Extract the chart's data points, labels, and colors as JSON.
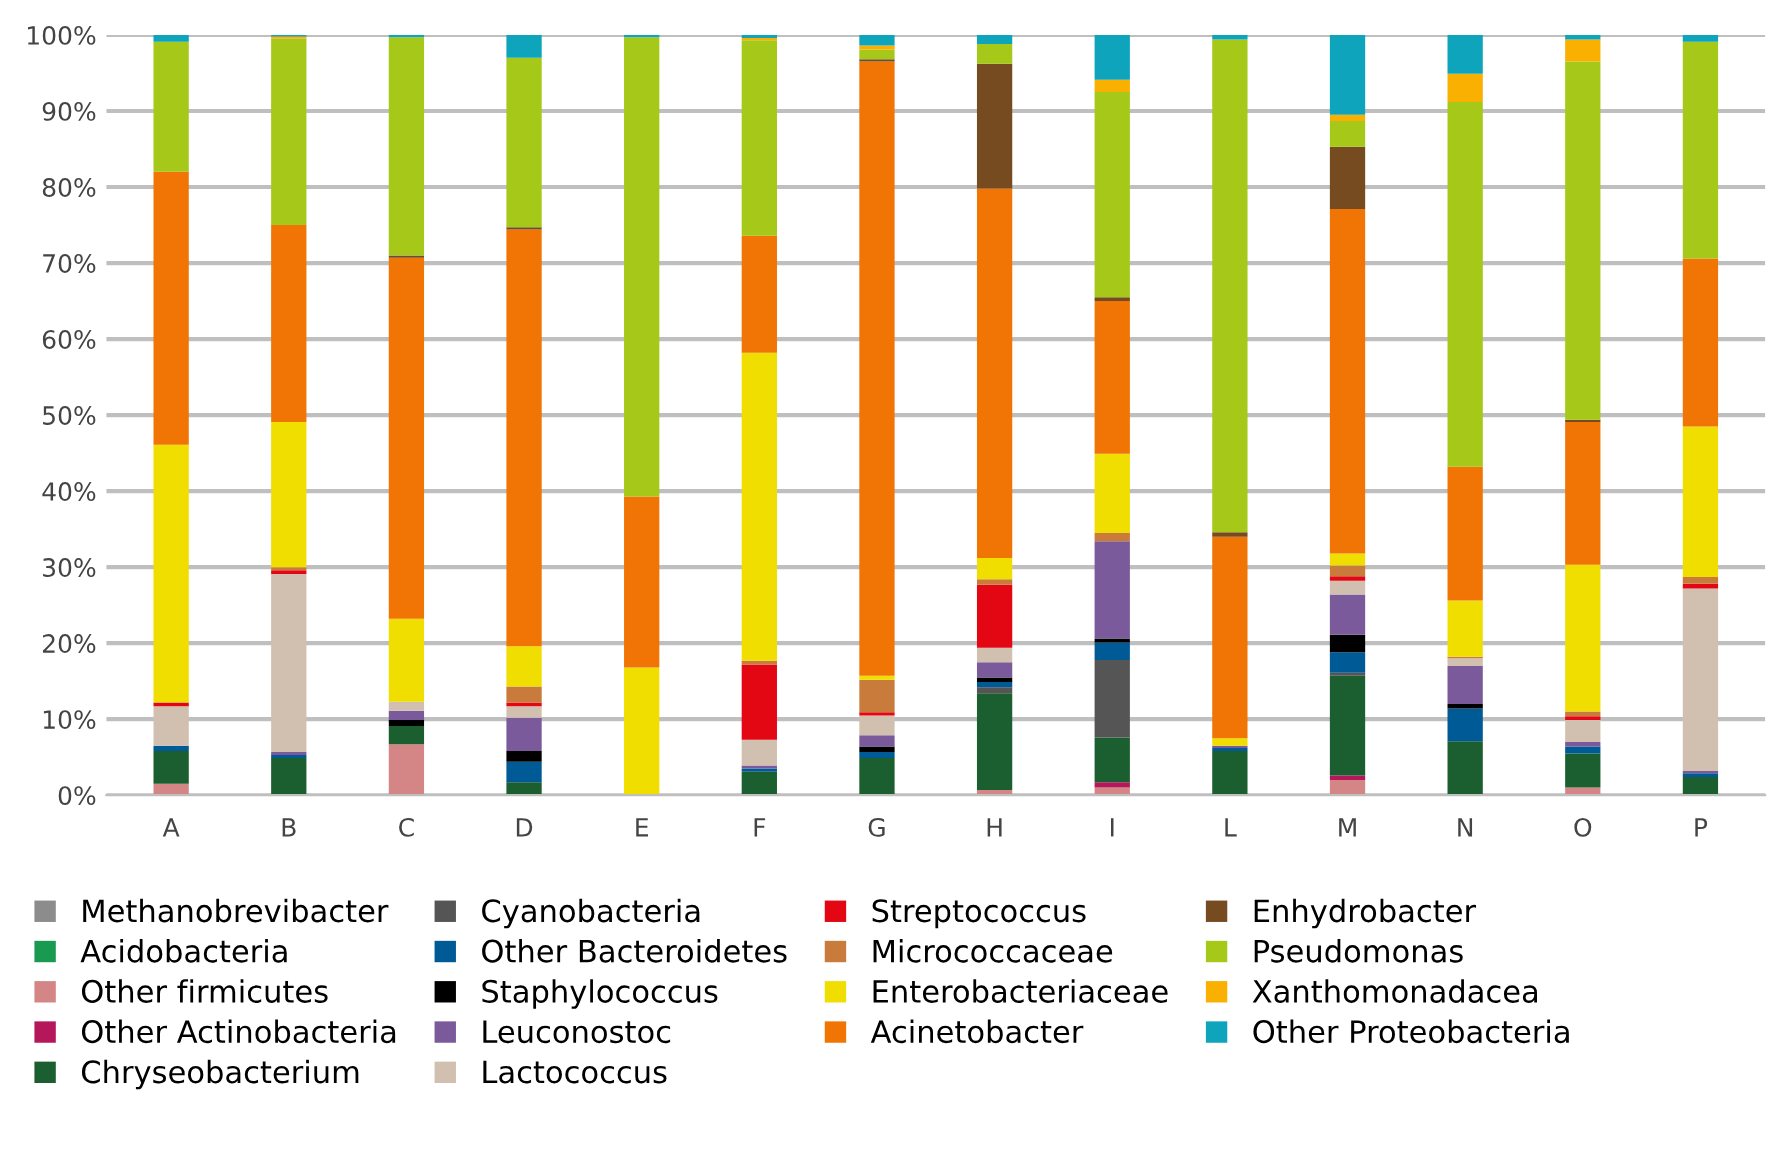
{
  "chart_data": {
    "type": "bar",
    "stacked": true,
    "categories": [
      "A",
      "B",
      "C",
      "D",
      "E",
      "F",
      "G",
      "H",
      "I",
      "L",
      "M",
      "N",
      "O",
      "P"
    ],
    "ylim": [
      0,
      100
    ],
    "yticks": [
      {
        "value": 0,
        "label": "0%"
      },
      {
        "value": 10,
        "label": "10%"
      },
      {
        "value": 20,
        "label": "20%"
      },
      {
        "value": 30,
        "label": "30%"
      },
      {
        "value": 40,
        "label": "40%"
      },
      {
        "value": 50,
        "label": "50%"
      },
      {
        "value": 60,
        "label": "60%"
      },
      {
        "value": 70,
        "label": "70%"
      },
      {
        "value": 80,
        "label": "80%"
      },
      {
        "value": 90,
        "label": "90%"
      },
      {
        "value": 100,
        "label": "100%"
      }
    ],
    "grid": "y",
    "legend": "bottom",
    "series": [
      {
        "name": "Methanobrevibacter",
        "color": "#8c8c8c",
        "values": [
          null,
          null,
          null,
          null,
          null,
          null,
          null,
          null,
          null,
          null,
          null,
          null,
          null,
          null
        ]
      },
      {
        "name": "Acidobacteria",
        "color": "#1a9a50",
        "values": [
          null,
          null,
          null,
          null,
          null,
          null,
          null,
          null,
          null,
          null,
          null,
          null,
          null,
          null
        ]
      },
      {
        "name": "Other firmicutes",
        "color": "#d48585",
        "values": [
          1.5,
          null,
          6.7,
          null,
          null,
          null,
          null,
          0.7,
          1.0,
          null,
          2.0,
          null,
          1.0,
          null
        ]
      },
      {
        "name": "Other Actinobacteria",
        "color": "#b5185a",
        "values": [
          null,
          null,
          null,
          null,
          null,
          null,
          null,
          null,
          0.7,
          null,
          0.6,
          null,
          null,
          null
        ]
      },
      {
        "name": "Chryseobacterium",
        "color": "#1b5e2f",
        "values": [
          4.3,
          4.9,
          2.4,
          1.7,
          null,
          3.1,
          4.9,
          12.7,
          5.9,
          5.8,
          13.1,
          7.1,
          4.5,
          2.4
        ]
      },
      {
        "name": "Cyanobacteria",
        "color": "#555555",
        "values": [
          null,
          null,
          null,
          null,
          null,
          null,
          null,
          0.8,
          10.2,
          null,
          0.4,
          null,
          null,
          null
        ]
      },
      {
        "name": "Other Bacteroidetes",
        "color": "#005a96",
        "values": [
          0.7,
          0.4,
          null,
          2.7,
          null,
          0.4,
          0.8,
          0.7,
          2.3,
          0.4,
          2.7,
          4.3,
          0.9,
          0.5
        ]
      },
      {
        "name": "Staphylococcus",
        "color": "#000000",
        "values": [
          null,
          null,
          0.8,
          1.4,
          null,
          null,
          0.7,
          0.6,
          0.5,
          null,
          2.3,
          0.6,
          null,
          null
        ]
      },
      {
        "name": "Leuconostoc",
        "color": "#7a5a9a",
        "values": [
          null,
          0.4,
          1.2,
          4.4,
          null,
          0.4,
          1.5,
          2.0,
          12.8,
          0.3,
          5.3,
          5.0,
          0.6,
          0.3
        ]
      },
      {
        "name": "Lactococcus",
        "color": "#d1c0b0",
        "values": [
          5.2,
          23.4,
          1.2,
          1.5,
          null,
          3.4,
          2.6,
          1.9,
          null,
          null,
          1.8,
          1.0,
          2.9,
          24.0
        ]
      },
      {
        "name": "Streptococcus",
        "color": "#e30613",
        "values": [
          0.5,
          0.5,
          null,
          0.5,
          null,
          9.9,
          0.4,
          8.3,
          null,
          null,
          0.6,
          null,
          0.5,
          0.6
        ]
      },
      {
        "name": "Micrococcaceae",
        "color": "#c87b3a",
        "values": [
          null,
          0.4,
          null,
          2.1,
          null,
          0.5,
          4.3,
          0.7,
          1.1,
          null,
          1.4,
          0.2,
          0.6,
          0.9
        ]
      },
      {
        "name": "Enterobacteriaceae",
        "color": "#f0de00",
        "values": [
          33.9,
          19.1,
          10.9,
          5.3,
          16.8,
          40.5,
          0.5,
          2.8,
          10.4,
          1.0,
          1.6,
          7.4,
          19.3,
          19.8
        ]
      },
      {
        "name": "Acinetobacter",
        "color": "#f07505",
        "values": [
          35.9,
          25.9,
          47.5,
          54.8,
          22.5,
          15.4,
          80.8,
          48.6,
          20.1,
          26.5,
          45.3,
          17.6,
          18.8,
          22.1
        ]
      },
      {
        "name": "Enhydrobacter",
        "color": "#774b20",
        "values": [
          null,
          null,
          0.3,
          0.3,
          null,
          null,
          0.3,
          16.4,
          0.5,
          0.6,
          8.2,
          null,
          0.3,
          null
        ]
      },
      {
        "name": "Pseudomonas",
        "color": "#a5c819",
        "values": [
          17.1,
          24.5,
          28.7,
          22.3,
          60.4,
          25.7,
          1.3,
          2.6,
          27.0,
          64.8,
          3.4,
          48.0,
          47.1,
          28.5
        ]
      },
      {
        "name": "Xanthomonadacea",
        "color": "#f9b000",
        "values": [
          null,
          0.3,
          null,
          null,
          null,
          0.3,
          0.5,
          null,
          1.6,
          null,
          0.8,
          3.7,
          2.9,
          null
        ]
      },
      {
        "name": "Other Proteobacteria",
        "color": "#0ea4bc",
        "values": [
          0.9,
          0.2,
          0.3,
          3.0,
          0.3,
          0.4,
          1.4,
          1.2,
          5.9,
          0.6,
          10.5,
          5.1,
          0.6,
          0.9
        ]
      }
    ]
  }
}
